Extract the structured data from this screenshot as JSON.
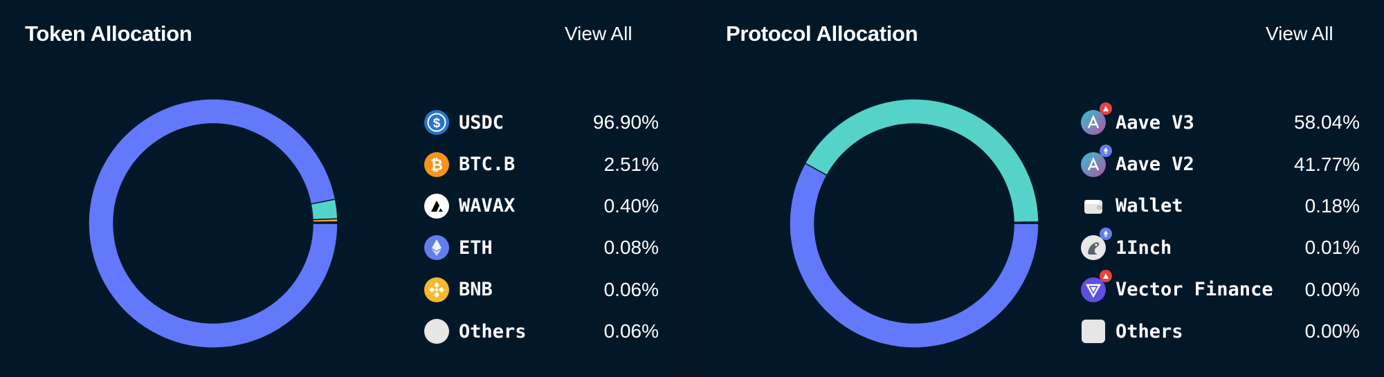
{
  "token_panel": {
    "title": "Token Allocation",
    "view_all": "View All",
    "items": [
      {
        "name": "USDC",
        "value": "96.90%",
        "icon": "usdc-icon"
      },
      {
        "name": "BTC.B",
        "value": "2.51%",
        "icon": "bitcoin-icon"
      },
      {
        "name": "WAVAX",
        "value": "0.40%",
        "icon": "avax-icon"
      },
      {
        "name": "ETH",
        "value": "0.08%",
        "icon": "ethereum-icon"
      },
      {
        "name": "BNB",
        "value": "0.06%",
        "icon": "bnb-icon"
      },
      {
        "name": "Others",
        "value": "0.06%",
        "icon": "others-icon"
      }
    ]
  },
  "protocol_panel": {
    "title": "Protocol Allocation",
    "view_all": "View All",
    "items": [
      {
        "name": "Aave V3",
        "value": "58.04%",
        "icon": "aave-v3-icon"
      },
      {
        "name": "Aave V2",
        "value": "41.77%",
        "icon": "aave-v2-icon"
      },
      {
        "name": "Wallet",
        "value": "0.18%",
        "icon": "wallet-icon"
      },
      {
        "name": "1Inch",
        "value": "0.01%",
        "icon": "1inch-icon"
      },
      {
        "name": "Vector Finance",
        "value": "0.00%",
        "icon": "vector-finance-icon"
      },
      {
        "name": "Others",
        "value": "0.00%",
        "icon": "others-icon"
      }
    ]
  },
  "chart_data": [
    {
      "type": "pie",
      "categories": [
        "USDC",
        "BTC.B",
        "WAVAX",
        "ETH",
        "BNB",
        "Others"
      ],
      "values": [
        96.9,
        2.51,
        0.4,
        0.08,
        0.06,
        0.06
      ],
      "colors": [
        "#6279fb",
        "#55d3c8",
        "#f0a030",
        "#1a2a44",
        "#f3ba2f",
        "#e6e6e6"
      ]
    },
    {
      "type": "pie",
      "categories": [
        "Aave V3",
        "Aave V2",
        "Wallet",
        "1Inch",
        "Vector Finance",
        "Others"
      ],
      "values": [
        58.04,
        41.77,
        0.18,
        0.01,
        0.0,
        0.0
      ],
      "colors": [
        "#6279fb",
        "#55d3c8",
        "#1a2a44",
        "#1a2a44",
        "#1a2a44",
        "#e6e6e6"
      ]
    }
  ]
}
